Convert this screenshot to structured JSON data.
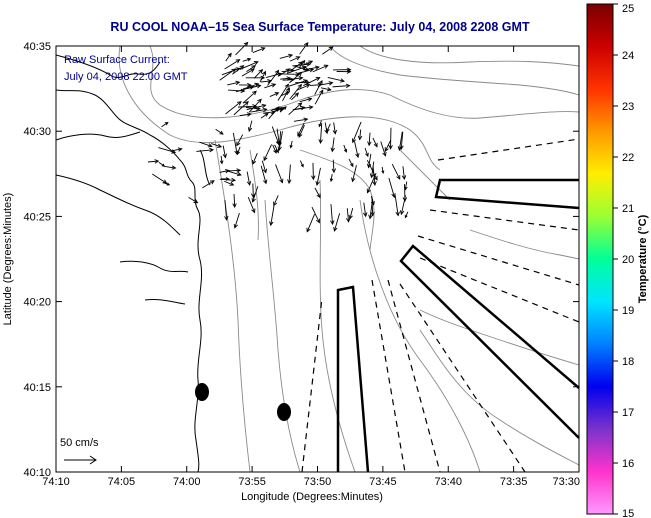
{
  "title": "RU COOL  NOAA–15  Sea Surface Temperature:  July 04, 2008 2208 GMT",
  "legend": {
    "line1": "Raw Surface Current:",
    "line2": "July 04, 2008 22:00 GMT",
    "scale_label": "50 cm/s"
  },
  "axes": {
    "xlabel": "Longitude (Degrees:Minutes)",
    "ylabel": "Latitude (Degrees:Minutes)",
    "xticks": [
      "74:10",
      "74:05",
      "74:00",
      "73:55",
      "73:50",
      "73:45",
      "73:40",
      "73:35",
      "73:30"
    ],
    "yticks": [
      "40:35",
      "40:30",
      "40:25",
      "40:20",
      "40:15",
      "40:10"
    ]
  },
  "colorbar": {
    "label": "Temperature (°C)",
    "ticks": [
      "25",
      "24",
      "23",
      "22",
      "21",
      "20",
      "19",
      "18",
      "17",
      "16",
      "15"
    ],
    "stops": [
      "#7a0000",
      "#cc0000",
      "#ff3300",
      "#ff9900",
      "#ffee00",
      "#99ff33",
      "#00ff99",
      "#00e5ff",
      "#0080ff",
      "#0000ee",
      "#7a33cc",
      "#ff33cc",
      "#ff99ff"
    ]
  },
  "colors": {
    "title": "#00008b",
    "contour": "#888888",
    "arrow": "#000000"
  }
}
